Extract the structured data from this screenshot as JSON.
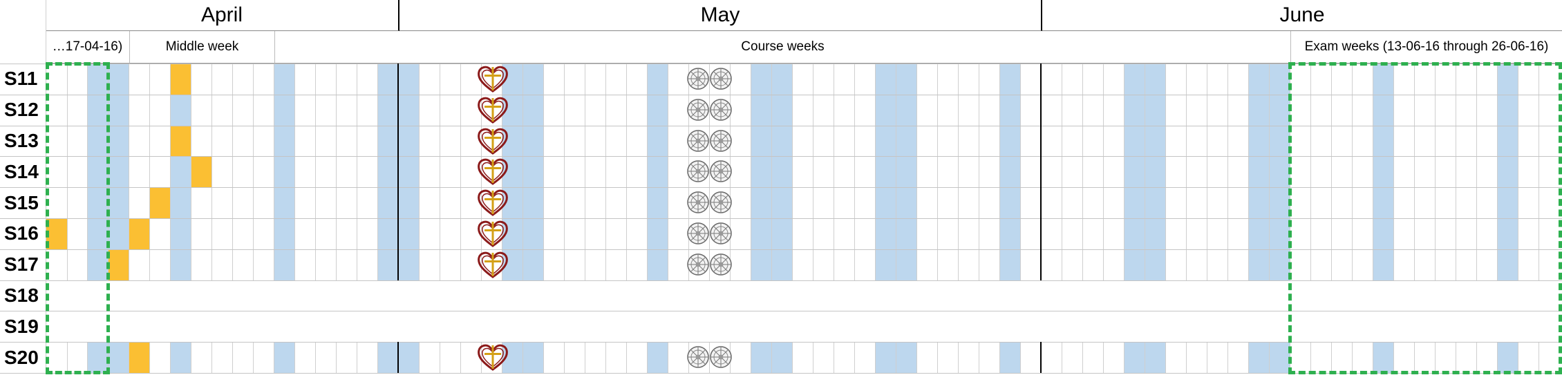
{
  "months": [
    {
      "label": "April"
    },
    {
      "label": "May"
    },
    {
      "label": "June"
    }
  ],
  "periods": [
    {
      "label": "…17-04-16)"
    },
    {
      "label": "Middle week"
    },
    {
      "label": "Course weeks"
    },
    {
      "label": "Exam weeks (13-06-16 through 26-06-16)"
    }
  ],
  "rows": [
    {
      "label": "S11"
    },
    {
      "label": "S12"
    },
    {
      "label": "S13"
    },
    {
      "label": "S14"
    },
    {
      "label": "S15"
    },
    {
      "label": "S16"
    },
    {
      "label": "S17"
    },
    {
      "label": "S18"
    },
    {
      "label": "S19"
    },
    {
      "label": "S20"
    }
  ],
  "icons": {
    "heart": "heart-cross-icon",
    "gear": "double-gear-icon"
  },
  "colors": {
    "weekend": "#bdd7ee",
    "marker": "#fbbf33",
    "exam_border": "#2eb04f",
    "heart": "#8b1a1a",
    "cross": "#d4a017"
  }
}
